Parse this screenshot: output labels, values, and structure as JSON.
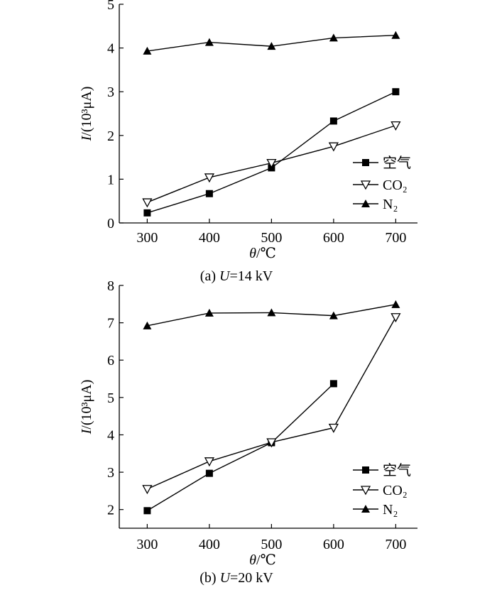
{
  "chart_data": [
    {
      "type": "line",
      "caption": "(a) U=14 kV",
      "caption_prefix": "(a) ",
      "caption_var": "U",
      "caption_rest": "=14 kV",
      "xlabel": "θ/℃",
      "ylabel": "I/(10³μA)",
      "x": [
        300,
        400,
        500,
        600,
        700
      ],
      "xticks": [
        "300",
        "400",
        "500",
        "600",
        "700"
      ],
      "yticks": [
        "0",
        "1",
        "2",
        "3",
        "4",
        "5"
      ],
      "xlim": [
        255,
        735
      ],
      "ylim": [
        0,
        5
      ],
      "series": [
        {
          "name": "空气",
          "marker": "square",
          "values": [
            0.23,
            0.67,
            1.26,
            2.33,
            3.0
          ]
        },
        {
          "name": "CO₂",
          "marker": "triangle-down-open",
          "values": [
            0.47,
            1.04,
            1.37,
            1.75,
            2.23
          ]
        },
        {
          "name": "N₂",
          "marker": "triangle-up",
          "values": [
            3.93,
            4.13,
            4.04,
            4.23,
            4.29
          ]
        }
      ],
      "legend": "right-middle"
    },
    {
      "type": "line",
      "caption": "(b) U=20 kV",
      "caption_prefix": "(b) ",
      "caption_var": "U",
      "caption_rest": "=20 kV",
      "xlabel": "θ/℃",
      "ylabel": "I/(10³μA)",
      "x": [
        300,
        400,
        500,
        600,
        700
      ],
      "xticks": [
        "300",
        "400",
        "500",
        "600",
        "700"
      ],
      "yticks": [
        "2",
        "3",
        "4",
        "5",
        "6",
        "7",
        "8"
      ],
      "xlim": [
        255,
        735
      ],
      "ylim": [
        1.5,
        8
      ],
      "series": [
        {
          "name": "空气",
          "marker": "square",
          "values": [
            1.97,
            2.97,
            3.79,
            5.37,
            null
          ]
        },
        {
          "name": "CO₂",
          "marker": "triangle-down-open",
          "values": [
            2.55,
            3.29,
            3.8,
            4.19,
            7.15
          ]
        },
        {
          "name": "N₂",
          "marker": "triangle-up",
          "values": [
            6.92,
            7.26,
            7.27,
            7.19,
            7.49
          ]
        }
      ],
      "legend": "right-bottom"
    }
  ]
}
